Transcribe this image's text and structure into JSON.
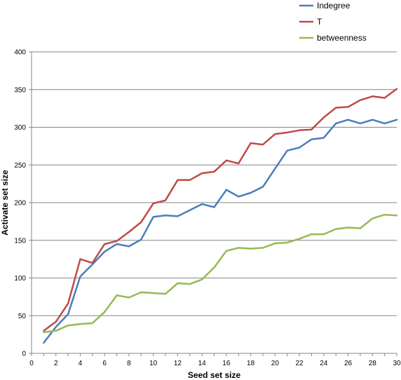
{
  "chart_data": {
    "type": "line",
    "title": "",
    "xlabel": "Seed set size",
    "ylabel": "Activate set size",
    "xlim": [
      0,
      30
    ],
    "ylim": [
      0,
      400
    ],
    "xticks": [
      0,
      2,
      4,
      6,
      8,
      10,
      12,
      14,
      16,
      18,
      20,
      22,
      24,
      26,
      28,
      30
    ],
    "yticks": [
      0,
      50,
      100,
      150,
      200,
      250,
      300,
      350,
      400
    ],
    "grid": "horizontal",
    "legend": "top-right",
    "x": [
      1,
      2,
      3,
      4,
      5,
      6,
      7,
      8,
      9,
      10,
      11,
      12,
      13,
      14,
      15,
      16,
      17,
      18,
      19,
      20,
      21,
      22,
      23,
      24,
      25,
      26,
      27,
      28,
      29,
      30
    ],
    "series": [
      {
        "name": "Indegree",
        "color": "#4a7ebb",
        "values": [
          14,
          35,
          52,
          102,
          118,
          135,
          145,
          142,
          151,
          181,
          183,
          182,
          190,
          198,
          194,
          217,
          208,
          213,
          221,
          245,
          269,
          273,
          284,
          286,
          305,
          310,
          305,
          310,
          305,
          310
        ]
      },
      {
        "name": "T",
        "color": "#be4b48",
        "values": [
          30,
          42,
          66,
          125,
          120,
          145,
          149,
          161,
          174,
          199,
          203,
          230,
          230,
          239,
          241,
          256,
          252,
          279,
          277,
          291,
          293,
          296,
          297,
          313,
          326,
          327,
          336,
          341,
          339,
          351
        ]
      },
      {
        "name": "betweenness",
        "color": "#98b954",
        "values": [
          28,
          30,
          37,
          39,
          40,
          55,
          77,
          74,
          81,
          80,
          79,
          93,
          92,
          98,
          114,
          136,
          140,
          139,
          140,
          146,
          147,
          152,
          158,
          158,
          165,
          167,
          166,
          179,
          184,
          183
        ]
      }
    ]
  }
}
